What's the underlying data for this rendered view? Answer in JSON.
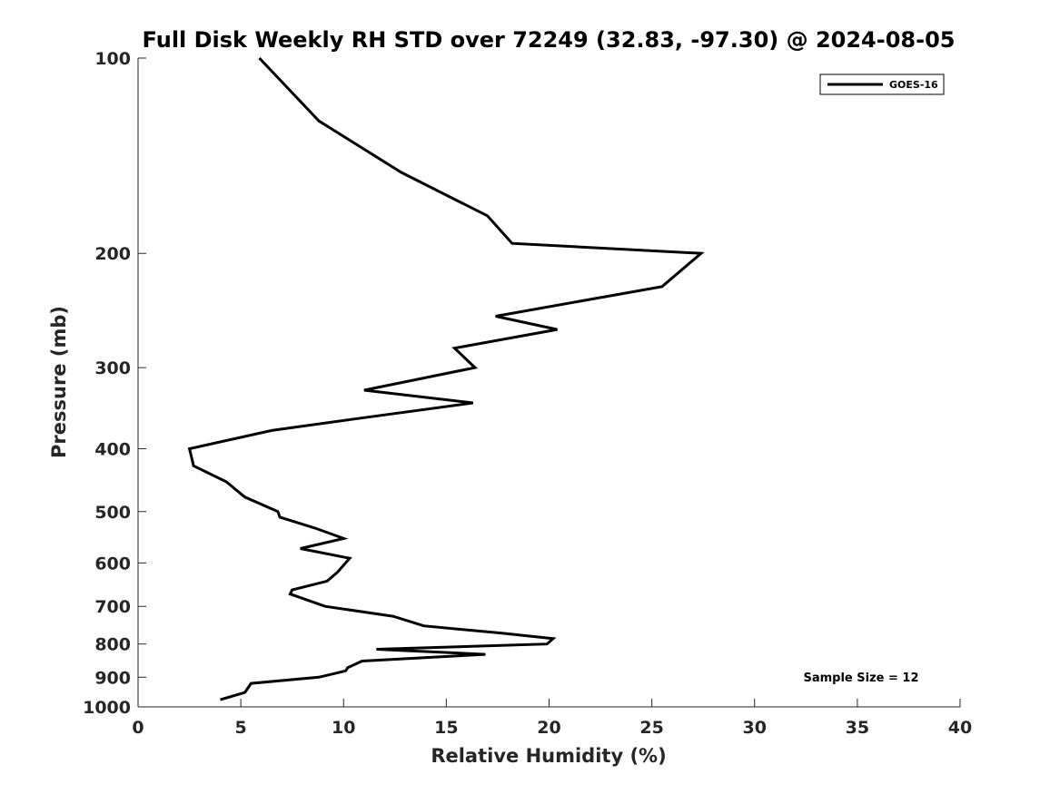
{
  "chart_data": {
    "type": "line",
    "title": "Full Disk Weekly RH STD over 72249 (32.83, -97.30) @ 2024-08-05",
    "xlabel": "Relative Humidity (%)",
    "ylabel": "Pressure (mb)",
    "xlim": [
      0,
      40
    ],
    "ylim": [
      100,
      1000
    ],
    "y_scale": "log",
    "y_reversed": true,
    "x_ticks": [
      "0",
      "5",
      "10",
      "15",
      "20",
      "25",
      "30",
      "35",
      "40"
    ],
    "x_tick_values": [
      0,
      5,
      10,
      15,
      20,
      25,
      30,
      35,
      40
    ],
    "y_ticks": [
      "100",
      "200",
      "300",
      "400",
      "500",
      "600",
      "700",
      "800",
      "900",
      "1000"
    ],
    "y_tick_values": [
      100,
      200,
      300,
      400,
      500,
      600,
      700,
      800,
      900,
      1000
    ],
    "legend": [
      "GOES-16"
    ],
    "legend_position": "top-right",
    "annotation": "Sample Size = 12",
    "series": [
      {
        "name": "GOES-16",
        "color": "#000000",
        "points": [
          [
            5.9,
            100
          ],
          [
            8.8,
            125
          ],
          [
            12.8,
            150
          ],
          [
            17.0,
            175
          ],
          [
            18.2,
            193
          ],
          [
            27.4,
            200
          ],
          [
            25.5,
            225
          ],
          [
            17.4,
            250
          ],
          [
            20.4,
            262
          ],
          [
            15.4,
            280
          ],
          [
            16.4,
            300
          ],
          [
            11.0,
            325
          ],
          [
            16.3,
            340
          ],
          [
            10.5,
            360
          ],
          [
            6.5,
            375
          ],
          [
            2.5,
            400
          ],
          [
            2.7,
            425
          ],
          [
            4.3,
            450
          ],
          [
            5.2,
            475
          ],
          [
            6.8,
            500
          ],
          [
            6.9,
            510
          ],
          [
            8.6,
            530
          ],
          [
            10.0,
            550
          ],
          [
            7.9,
            570
          ],
          [
            10.3,
            590
          ],
          [
            9.9,
            610
          ],
          [
            9.7,
            620
          ],
          [
            9.2,
            640
          ],
          [
            7.5,
            660
          ],
          [
            7.4,
            670
          ],
          [
            9.1,
            700
          ],
          [
            12.4,
            725
          ],
          [
            13.9,
            750
          ],
          [
            17.7,
            770
          ],
          [
            20.2,
            785
          ],
          [
            19.9,
            800
          ],
          [
            11.6,
            815
          ],
          [
            16.9,
            830
          ],
          [
            10.9,
            850
          ],
          [
            10.2,
            870
          ],
          [
            10.1,
            880
          ],
          [
            8.8,
            900
          ],
          [
            5.5,
            920
          ],
          [
            5.2,
            950
          ],
          [
            4.0,
            975
          ]
        ]
      }
    ]
  }
}
